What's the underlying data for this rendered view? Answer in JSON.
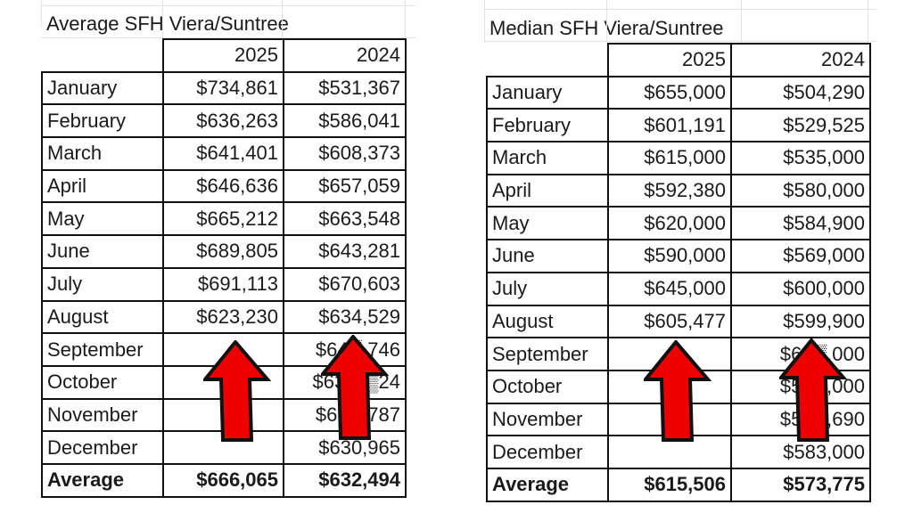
{
  "left_table": {
    "title": "Average SFH Viera/Suntree",
    "columns": [
      "",
      "2025",
      "2024"
    ],
    "rows": [
      {
        "month": "January",
        "y2025": "$734,861",
        "y2024": "$531,367"
      },
      {
        "month": "February",
        "y2025": "$636,263",
        "y2024": "$586,041"
      },
      {
        "month": "March",
        "y2025": "$641,401",
        "y2024": "$608,373"
      },
      {
        "month": "April",
        "y2025": "$646,636",
        "y2024": "$657,059"
      },
      {
        "month": "May",
        "y2025": "$665,212",
        "y2024": "$663,548"
      },
      {
        "month": "June",
        "y2025": "$689,805",
        "y2024": "$643,281"
      },
      {
        "month": "July",
        "y2025": "$691,113",
        "y2024": "$670,603"
      },
      {
        "month": "August",
        "y2025": "$623,230",
        "y2024": "$634,529"
      },
      {
        "month": "September",
        "y2025": "",
        "y2024": "$64▒,746"
      },
      {
        "month": "October",
        "y2025": "",
        "y2024": "$63▒,▒24"
      },
      {
        "month": "November",
        "y2025": "",
        "y2024": "$68▒,787"
      },
      {
        "month": "December",
        "y2025": "",
        "y2024": "$630,965"
      }
    ],
    "total": {
      "label": "Average",
      "y2025": "$666,065",
      "y2024": "$632,494"
    }
  },
  "right_table": {
    "title": "Median SFH Viera/Suntree",
    "columns": [
      "",
      "2025",
      "2024"
    ],
    "rows": [
      {
        "month": "January",
        "y2025": "$655,000",
        "y2024": "$504,290"
      },
      {
        "month": "February",
        "y2025": "$601,191",
        "y2024": "$529,525"
      },
      {
        "month": "March",
        "y2025": "$615,000",
        "y2024": "$535,000"
      },
      {
        "month": "April",
        "y2025": "$592,380",
        "y2024": "$580,000"
      },
      {
        "month": "May",
        "y2025": "$620,000",
        "y2024": "$584,900"
      },
      {
        "month": "June",
        "y2025": "$590,000",
        "y2024": "$569,000"
      },
      {
        "month": "July",
        "y2025": "$645,000",
        "y2024": "$600,000"
      },
      {
        "month": "August",
        "y2025": "$605,477",
        "y2024": "$599,900"
      },
      {
        "month": "September",
        "y2025": "",
        "y2024": "$62▒,000"
      },
      {
        "month": "October",
        "y2025": "",
        "y2024": "$58▒,000"
      },
      {
        "month": "November",
        "y2025": "",
        "y2024": "$59▒,690"
      },
      {
        "month": "December",
        "y2025": "",
        "y2024": "$583,000"
      }
    ],
    "total": {
      "label": "Average",
      "y2025": "$615,506",
      "y2024": "$573,775"
    }
  },
  "annotations": {
    "arrow_color": "#ee0000",
    "arrow_outline": "#111111",
    "arrows": [
      "up-arrow-left-2025",
      "up-arrow-left-2024",
      "up-arrow-right-2025",
      "up-arrow-right-2024"
    ]
  }
}
